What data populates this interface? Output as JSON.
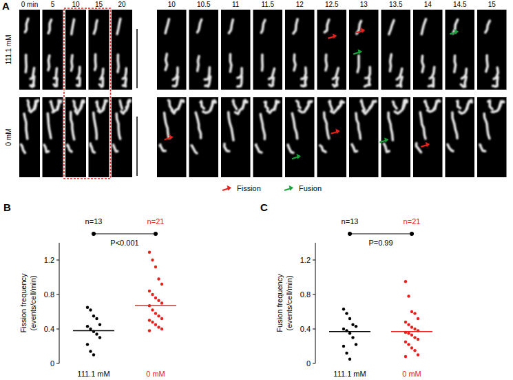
{
  "panel_a": {
    "label": "A",
    "time_left": [
      "0 min",
      "5",
      "10",
      "15",
      "20"
    ],
    "time_right": [
      "10",
      "10.5",
      "11",
      "11.5",
      "12",
      "12.5",
      "13",
      "13.5",
      "14",
      "14.5",
      "15"
    ],
    "rows": [
      {
        "label": "111.1 mM",
        "fission": [
          5,
          6
        ],
        "fusion": [
          6,
          9
        ]
      },
      {
        "label": "0 mM",
        "fission": [
          0,
          5,
          8
        ],
        "fusion": [
          4,
          7
        ]
      }
    ],
    "legend": [
      {
        "text": "Fission",
        "color": "#e8211c"
      },
      {
        "text": "Fusion",
        "color": "#1aa33c"
      }
    ]
  },
  "panel_labels": [
    "B",
    "C"
  ],
  "chart_data": [
    {
      "type": "strip",
      "ylabel": [
        "Fission frequency",
        "(events/cell/min)"
      ],
      "categories": [
        "111.1 mM",
        "0 mM"
      ],
      "colors": [
        "#000000",
        "#e8211c"
      ],
      "values": [
        [
          0.65,
          0.62,
          0.55,
          0.52,
          0.45,
          0.43,
          0.4,
          0.37,
          0.34,
          0.3,
          0.22,
          0.14,
          0.1
        ],
        [
          1.29,
          1.2,
          1.12,
          0.98,
          0.92,
          0.84,
          0.8,
          0.76,
          0.73,
          0.7,
          0.67,
          0.62,
          0.58,
          0.55,
          0.52,
          0.5,
          0.48,
          0.45,
          0.42,
          0.4,
          0.38
        ]
      ],
      "means": [
        0.38,
        0.67
      ],
      "counts": [
        "n=13",
        "n=21"
      ],
      "annotation": "P<0.001",
      "ylim": [
        0,
        1.4
      ],
      "yticks": [
        0,
        0.4,
        0.8,
        1.2
      ]
    },
    {
      "type": "strip",
      "ylabel": [
        "Fusion frequency",
        "(events/cell/min)"
      ],
      "categories": [
        "111.1 mM",
        "0 mM"
      ],
      "colors": [
        "#000000",
        "#e8211c"
      ],
      "values": [
        [
          0.63,
          0.58,
          0.52,
          0.45,
          0.43,
          0.4,
          0.38,
          0.35,
          0.3,
          0.22,
          0.2,
          0.12,
          0.05
        ],
        [
          0.95,
          0.78,
          0.6,
          0.58,
          0.52,
          0.48,
          0.45,
          0.42,
          0.4,
          0.38,
          0.36,
          0.35,
          0.33,
          0.3,
          0.28,
          0.25,
          0.22,
          0.18,
          0.15,
          0.1,
          0.08
        ]
      ],
      "means": [
        0.37,
        0.37
      ],
      "counts": [
        "n=13",
        "n=21"
      ],
      "annotation": "P=0.99",
      "ylim": [
        0,
        1.4
      ],
      "yticks": [
        0,
        0.4,
        0.8,
        1.2
      ]
    }
  ]
}
